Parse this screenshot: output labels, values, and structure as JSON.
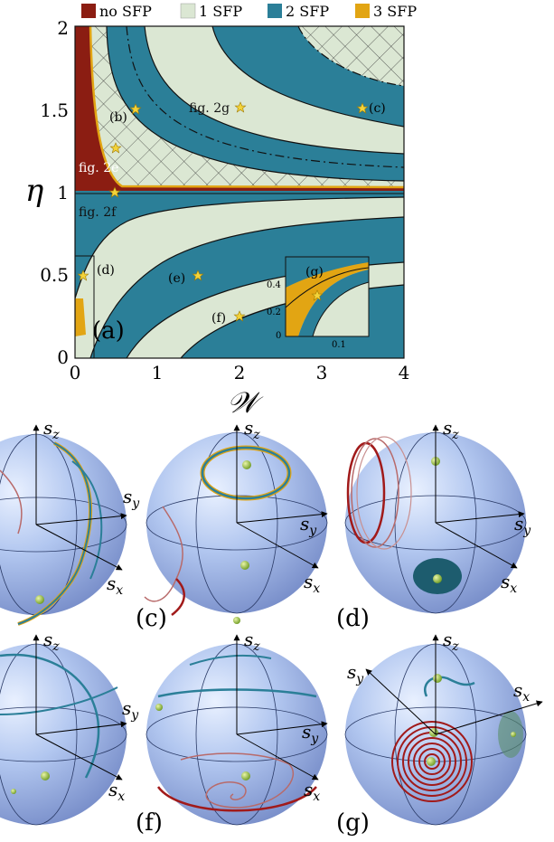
{
  "figure": {
    "legend": [
      {
        "label": "no SFP",
        "color": "#8b1d12"
      },
      {
        "label": "1 SFP",
        "color": "#dbe7d3"
      },
      {
        "label": "2 SFP",
        "color": "#2b7f98"
      },
      {
        "label": "3 SFP",
        "color": "#e2a513"
      }
    ],
    "panel_a": {
      "label": "(a)",
      "xlabel": "𝒲",
      "ylabel": "η",
      "xticks": [
        "0",
        "1",
        "2",
        "3",
        "4"
      ],
      "yticks": [
        "0",
        "0.5",
        "1",
        "1.5",
        "2"
      ],
      "point_labels": {
        "b": "(b)",
        "c": "(c)",
        "d": "(d)",
        "e": "(e)",
        "f": "(f)"
      },
      "region_labels": {
        "fig2g": "fig. 2g",
        "fig2e": "fig. 2e",
        "fig2f": "fig. 2f"
      },
      "inset": {
        "label": "(g)",
        "yticks": [
          "0.4",
          "0.2",
          "0"
        ],
        "xticks": [
          "0.1"
        ]
      }
    },
    "spheres": [
      {
        "key": "b",
        "label": "",
        "axis_z": "s",
        "axis_z_sub": "z",
        "axis_x": "s",
        "axis_x_sub": "x",
        "axis_y": "s",
        "axis_y_sub": "y"
      },
      {
        "key": "c",
        "label": "(c)",
        "axis_z": "s",
        "axis_z_sub": "z",
        "axis_x": "s",
        "axis_x_sub": "x",
        "axis_y": "s",
        "axis_y_sub": "y"
      },
      {
        "key": "d",
        "label": "(d)",
        "axis_z": "s",
        "axis_z_sub": "z",
        "axis_x": "s",
        "axis_x_sub": "x",
        "axis_y": "s",
        "axis_y_sub": "y"
      },
      {
        "key": "e",
        "label": "",
        "axis_z": "s",
        "axis_z_sub": "z",
        "axis_x": "s",
        "axis_x_sub": "x",
        "axis_y": "s",
        "axis_y_sub": "y"
      },
      {
        "key": "f",
        "label": "(f)",
        "axis_z": "s",
        "axis_z_sub": "z",
        "axis_x": "s",
        "axis_x_sub": "x",
        "axis_y": "s",
        "axis_y_sub": "y"
      },
      {
        "key": "g",
        "label": "(g)",
        "axis_z": "s",
        "axis_z_sub": "z",
        "axis_x": "s",
        "axis_x_sub": "x",
        "axis_y": "s",
        "axis_y_sub": "y"
      }
    ]
  }
}
